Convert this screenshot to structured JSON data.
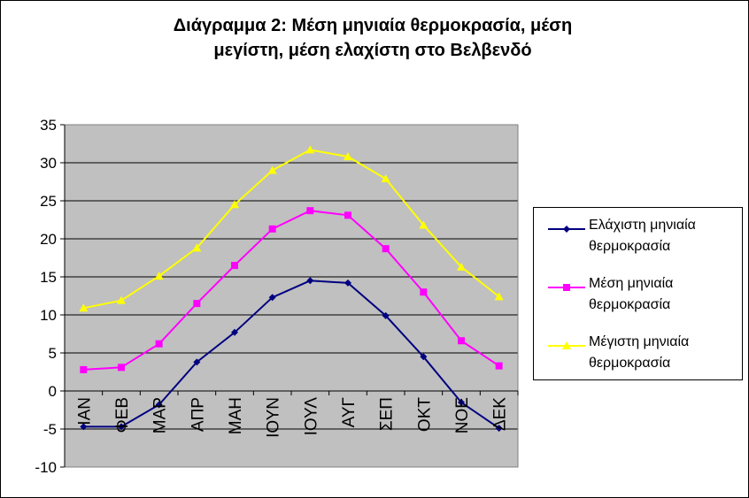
{
  "chart_data": {
    "type": "line",
    "title_lines": [
      "Διάγραμμα 2: Μέση μηνιαία θερμοκρασία, μέση",
      "μεγίστη, μέση ελαχίστη στο Βελβενδό"
    ],
    "categories": [
      "ΙΑΝ",
      "ΦΕΒ",
      "ΜΑΡ",
      "ΑΠΡ",
      "ΜΑΗ",
      "ΙΟΥΝ",
      "ΙΟΥΛ",
      "ΑΥΓ",
      "ΣΕΠ",
      "ΟΚΤ",
      "ΝΟΕ",
      "ΔΕΚ"
    ],
    "ylim": [
      -10,
      35
    ],
    "yticks": [
      35,
      30,
      25,
      20,
      15,
      10,
      5,
      0,
      -5,
      -10
    ],
    "grid": true,
    "plot_background": "#c0c0c0",
    "legend_position": "right",
    "series": [
      {
        "name_lines": [
          "Ελάχιστη μηνιαία",
          "θερμοκρασία"
        ],
        "color": "#000080",
        "marker": "diamond",
        "values": [
          -4.7,
          -4.7,
          -1.8,
          3.8,
          7.7,
          12.3,
          14.5,
          14.2,
          9.9,
          4.5,
          -1.5,
          -4.9
        ]
      },
      {
        "name_lines": [
          "Μέση μηνιαία",
          "θερμοκρασία"
        ],
        "color": "#ff00ff",
        "marker": "square",
        "values": [
          2.8,
          3.1,
          6.2,
          11.5,
          16.5,
          21.3,
          23.7,
          23.1,
          18.7,
          13.0,
          6.6,
          3.3
        ]
      },
      {
        "name_lines": [
          "Μέγιστη μηνιαία",
          "θερμοκρασία"
        ],
        "color": "#ffff00",
        "marker": "triangle",
        "values": [
          10.9,
          11.9,
          15.1,
          18.8,
          24.5,
          29.0,
          31.7,
          30.8,
          27.9,
          21.8,
          16.3,
          12.4
        ]
      }
    ]
  }
}
